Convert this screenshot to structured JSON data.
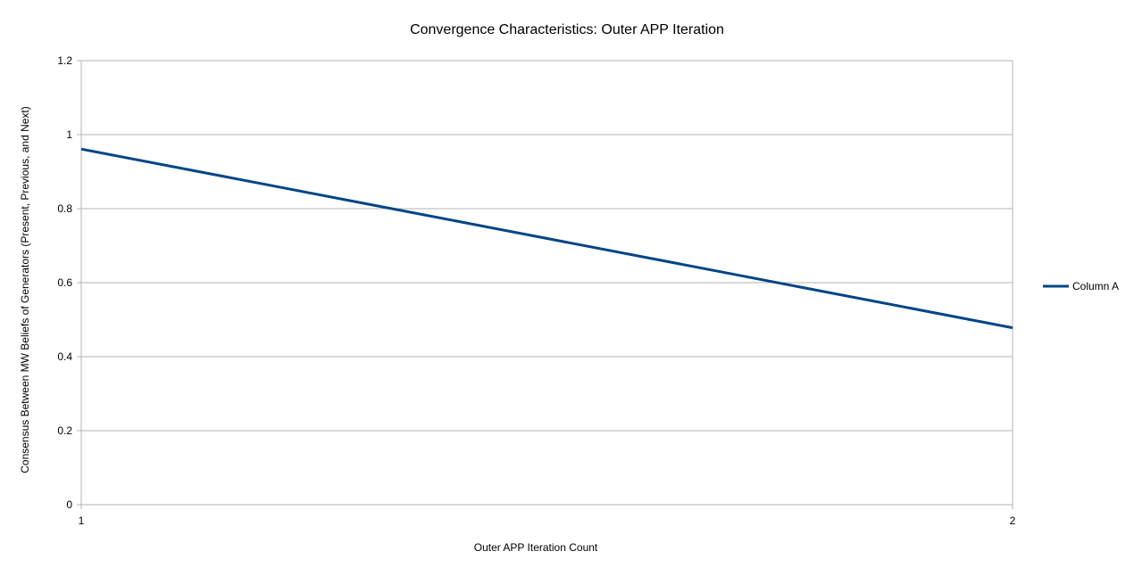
{
  "chart_data": {
    "type": "line",
    "title": "Convergence Characteristics: Outer APP Iteration",
    "xlabel": "Outer APP Iteration Count",
    "ylabel": "Consensus Between MW Beliefs of Generators (Present, Previous, and Next)",
    "x": [
      1,
      2
    ],
    "x_tick_labels": [
      "1",
      "2"
    ],
    "ylim": [
      0,
      1.2
    ],
    "y_ticks": [
      0,
      0.2,
      0.4,
      0.6,
      0.8,
      1,
      1.2
    ],
    "y_tick_labels": [
      "0",
      "0.2",
      "0.4",
      "0.6",
      "0.8",
      "1",
      "1.2"
    ],
    "grid": true,
    "legend_position": "right",
    "series": [
      {
        "name": "Column A",
        "color": "#004586",
        "values": [
          0.961,
          0.478
        ]
      }
    ]
  }
}
